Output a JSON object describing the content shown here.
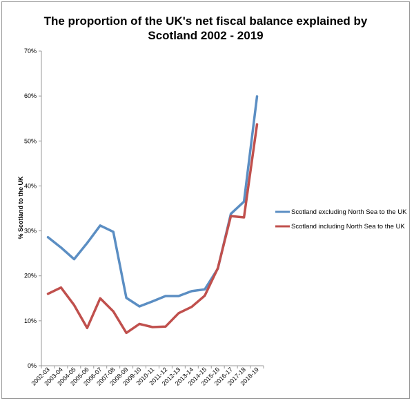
{
  "chart_data": {
    "type": "line",
    "title_line1": "The proportion of the UK's net fiscal balance explained by",
    "title_line2": "Scotland 2002 - 2019",
    "ylabel": "% Scotland to the UK",
    "xlabel": "",
    "ylim": [
      0,
      70
    ],
    "y_ticks": [
      "0%",
      "10%",
      "20%",
      "30%",
      "40%",
      "50%",
      "60%",
      "70%"
    ],
    "grid": false,
    "legend_position": "right",
    "categories": [
      "2002-03",
      "2003-04",
      "2004-05",
      "2005-06",
      "2006-07",
      "2007-08",
      "2008-09",
      "2009-10",
      "2010-11",
      "2011-12",
      "2012-13",
      "2013-14",
      "2014-15",
      "2015-16",
      "2016-17",
      "2017-18",
      "2018-19"
    ],
    "series": [
      {
        "name": "Scotland excluding North Sea to the UK",
        "color": "#5b8ec3",
        "values": [
          28.6,
          26.3,
          23.7,
          27.3,
          31.2,
          29.8,
          15.1,
          13.2,
          14.3,
          15.5,
          15.5,
          16.6,
          17.0,
          21.6,
          33.8,
          36.5,
          59.9
        ]
      },
      {
        "name": "Scotland including North Sea to the UK",
        "color": "#c0504d",
        "values": [
          16.0,
          17.4,
          13.5,
          8.4,
          15.0,
          12.1,
          7.3,
          9.3,
          8.6,
          8.7,
          11.7,
          13.1,
          15.6,
          21.7,
          33.3,
          33.0,
          53.7
        ]
      }
    ]
  }
}
